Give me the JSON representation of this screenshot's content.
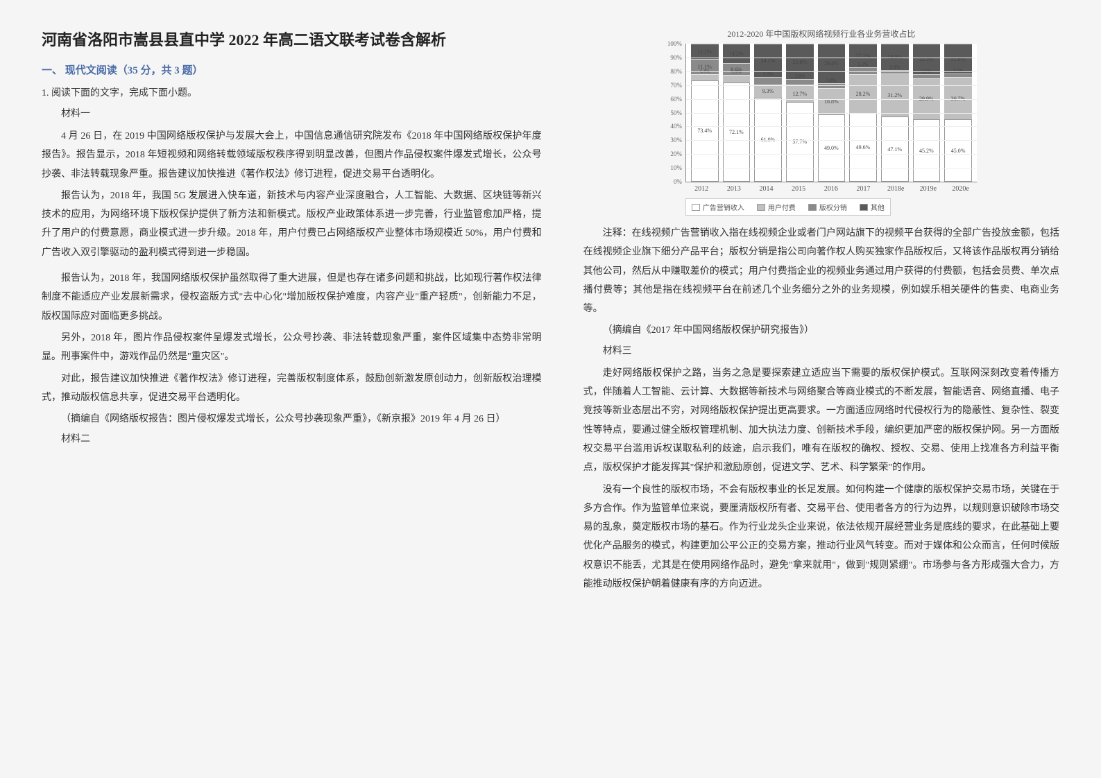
{
  "title": "河南省洛阳市嵩县县直中学 2022 年高二语文联考试卷含解析",
  "section1": "一、 现代文阅读（35 分，共 3 题）",
  "q1": "1. 阅读下面的文字，完成下面小题。",
  "mat1_label": "材料一",
  "mat1_p1": "4 月 26 日，在 2019 中国网络版权保护与发展大会上，中国信息通信研究院发布《2018 年中国网络版权保护年度报告》。报告显示，2018 年短视频和网络转载领域版权秩序得到明显改善，但图片作品侵权案件爆发式增长，公众号抄袭、非法转载现象严重。报告建议加快推进《著作权法》修订进程，促进交易平台透明化。",
  "mat1_p2": "报告认为，2018 年，我国 5G 发展进入快车道，新技术与内容产业深度融合，人工智能、大数据、区块链等新兴技术的应用，为网络环境下版权保护提供了新方法和新模式。版权产业政策体系进一步完善，行业监管愈加严格，提升了用户的付费意愿，商业模式进一步升级。2018 年，用户付费已占网络版权产业整体市场规模近 50%，用户付费和广告收入双引擎驱动的盈利模式得到进一步稳固。",
  "mat1_p3": "报告认为，2018 年，我国网络版权保护虽然取得了重大进展，但是也存在诸多问题和挑战，比如现行著作权法律制度不能适应产业发展新需求，侵权盗版方式\"去中心化\"增加版权保护难度，内容产业\"重产轻质\"，创新能力不足，版权国际应对面临更多挑战。",
  "mat1_p4": "另外，2018 年，图片作品侵权案件呈爆发式增长，公众号抄袭、非法转载现象严重，案件区域集中态势非常明显。刑事案件中，游戏作品仍然是\"重灾区\"。",
  "mat1_p5": "对此，报告建议加快推进《著作权法》修订进程，完善版权制度体系，鼓励创新激发原创动力，创新版权治理模式，推动版权信息共享，促进交易平台透明化。",
  "mat1_src": "（摘编自《网络版权报告：图片侵权爆发式增长，公众号抄袭现象严重》，《新京报》2019 年 4 月 26 日）",
  "mat2_label": "材料二",
  "mat2_note": "注释：在线视频广告营销收入指在线视频企业或者门户网站旗下的视频平台获得的全部广告投放金额，包括在线视频企业旗下细分产品平台；版权分销是指公司向著作权人购买独家作品版权后，又将该作品版权再分销给其他公司，然后从中赚取差价的模式；用户付费指企业的视频业务通过用户获得的付费额，包括会员费、单次点播付费等；其他是指在线视频平台在前述几个业务细分之外的业务规模，例如娱乐相关硬件的售卖、电商业务等。",
  "mat2_src": "（摘编自《2017 年中国网络版权保护研究报告》）",
  "mat3_label": "材料三",
  "mat3_p1": "走好网络版权保护之路，当务之急是要探索建立适应当下需要的版权保护模式。互联网深刻改变着传播方式，伴随着人工智能、云计算、大数据等新技术与网络聚合等商业模式的不断发展，智能语音、网络直播、电子竞技等新业态层出不穷，对网络版权保护提出更高要求。一方面适应网络时代侵权行为的隐蔽性、复杂性、裂变性等特点，要通过健全版权管理机制、加大执法力度、创新技术手段，编织更加严密的版权保护网。另一方面版权交易平台滥用诉权谋取私利的歧途，启示我们，唯有在版权的确权、授权、交易、使用上找准各方利益平衡点，版权保护才能发挥其\"保护和激励原创，促进文学、艺术、科学繁荣\"的作用。",
  "mat3_p2": "没有一个良性的版权市场，不会有版权事业的长足发展。如何构建一个健康的版权保护交易市场，关键在于多方合作。作为监管单位来说，要厘清版权所有者、交易平台、使用者各方的行为边界，以规则意识破除市场交易的乱象，奠定版权市场的基石。作为行业龙头企业来说，依法依规开展经营业务是底线的要求，在此基础上要优化产品服务的模式，构建更加公平公正的交易方案，推动行业风气转变。而对于媒体和公众而言，任何时候版权意识不能丢，尤其是在使用网络作品时，避免\"拿来就用\"，做到\"规则紧绷\"。市场参与各方形成强大合力，方能推动版权保护朝着健康有序的方向迈进。",
  "chart": {
    "title": "2012-2020 年中国版权网络视频行业各业务营收占比",
    "ylabel_pct": true,
    "ylim": [
      0,
      100
    ],
    "ytick_step": 10,
    "categories": [
      "2012",
      "2013",
      "2014",
      "2015",
      "2016",
      "2017",
      "2018e",
      "2019e",
      "2020e"
    ],
    "series": [
      {
        "name": "广告营销收入",
        "color": "#ffffff",
        "border": "#999999"
      },
      {
        "name": "用户付费",
        "color": "#c0c0c0"
      },
      {
        "name": "版权分销",
        "color": "#8a8a8a"
      },
      {
        "name": "其他",
        "color": "#5a5a5a"
      }
    ],
    "stacks": [
      {
        "ad": 73.4,
        "user": 4.4,
        "dist": 11.1,
        "other": 11.1
      },
      {
        "ad": 72.1,
        "user": 5.1,
        "dist": 8.6,
        "other": 14.2
      },
      {
        "ad": 61.0,
        "user": 9.3,
        "dist": 5.6,
        "other": 24.1
      },
      {
        "ad": 57.7,
        "user": 12.7,
        "dist": 3.8,
        "other": 25.8
      },
      {
        "ad": 49.0,
        "user": 18.8,
        "dist": 3.8,
        "other": 28.4
      },
      {
        "ad": 49.6,
        "user": 28.2,
        "dist": 5.1,
        "other": 17.1
      },
      {
        "ad": 47.1,
        "user": 31.2,
        "dist": 2.8,
        "other": 18.9
      },
      {
        "ad": 45.2,
        "user": 29.9,
        "dist": 2.6,
        "other": 22.3
      },
      {
        "ad": 45.0,
        "user": 30.7,
        "dist": 2.5,
        "other": 21.8
      }
    ]
  }
}
